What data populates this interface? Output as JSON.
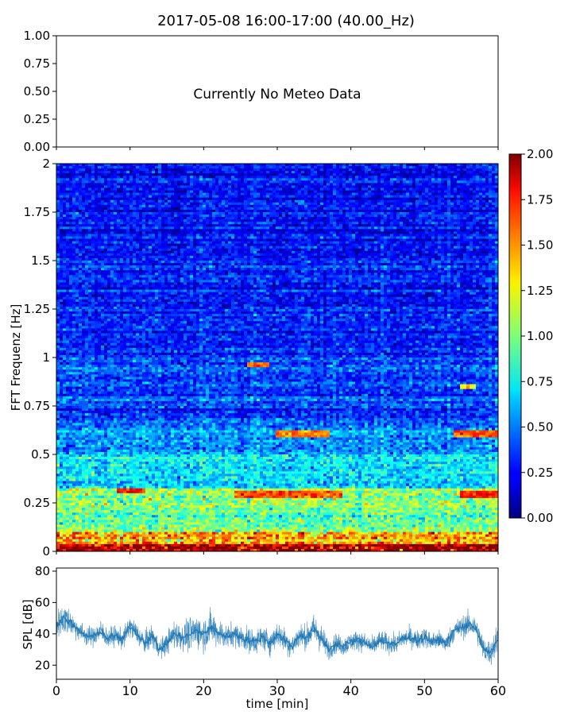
{
  "figure": {
    "title": "2017-05-08 16:00-17:00 (40.00_Hz)"
  },
  "chart_data": [
    {
      "type": "line",
      "panel": "meteo",
      "annotation": "Currently No Meteo Data",
      "ylim": [
        0,
        1
      ],
      "yticks": [
        "1.00",
        "0.75",
        "0.50",
        "0.25",
        "0.00"
      ],
      "series": []
    },
    {
      "type": "heatmap",
      "panel": "spectrogram",
      "ylabel": "FFT Frequenz [Hz]",
      "ylim": [
        0,
        2
      ],
      "yticks": [
        "2",
        "1.75",
        "1.5",
        "1.25",
        "1",
        "0.75",
        "0.5",
        "0.25",
        "0"
      ],
      "xlim": [
        0,
        60
      ],
      "colorbar": {
        "range": [
          0,
          2
        ],
        "ticks": [
          "2.00",
          "1.75",
          "1.50",
          "1.25",
          "1.00",
          "0.75",
          "0.50",
          "0.25",
          "0.00"
        ],
        "colormap": "jet"
      },
      "bands": [
        {
          "f": [
            0,
            0.04
          ],
          "level": 1.95
        },
        {
          "f": [
            0.04,
            0.1
          ],
          "level": 1.35
        },
        {
          "f": [
            0.1,
            0.25
          ],
          "level": 0.95
        },
        {
          "f": [
            0.25,
            0.33
          ],
          "level": 1.05
        },
        {
          "f": [
            0.33,
            0.5
          ],
          "level": 0.7
        },
        {
          "f": [
            0.5,
            0.65
          ],
          "level": 0.55
        },
        {
          "f": [
            0.65,
            1.0
          ],
          "level": 0.42
        },
        {
          "f": [
            1.0,
            1.5
          ],
          "level": 0.33
        },
        {
          "f": [
            1.5,
            2.0
          ],
          "level": 0.27
        }
      ],
      "hotspots": [
        {
          "t": [
            26,
            29
          ],
          "f": [
            0.95,
            0.97
          ],
          "level": 1.6
        },
        {
          "t": [
            30,
            37
          ],
          "f": [
            0.59,
            0.62
          ],
          "level": 1.5
        },
        {
          "t": [
            54,
            60
          ],
          "f": [
            0.59,
            0.62
          ],
          "level": 1.6
        },
        {
          "t": [
            55,
            57
          ],
          "f": [
            0.84,
            0.86
          ],
          "level": 1.3
        },
        {
          "t": [
            8,
            12
          ],
          "f": [
            0.3,
            0.32
          ],
          "level": 1.7
        },
        {
          "t": [
            24,
            39
          ],
          "f": [
            0.28,
            0.31
          ],
          "level": 1.6
        },
        {
          "t": [
            55,
            60
          ],
          "f": [
            0.28,
            0.31
          ],
          "level": 1.7
        }
      ]
    },
    {
      "type": "line",
      "panel": "spl",
      "ylabel": "SPL [dB]",
      "xlabel": "time [min]",
      "xlim": [
        0,
        60
      ],
      "ylim": [
        11,
        82
      ],
      "yticks": [
        20,
        40,
        60,
        80
      ],
      "xticks": [
        0,
        10,
        20,
        30,
        40,
        50,
        60
      ],
      "color": "#1f77b4",
      "series": [
        {
          "x": [
            0,
            1,
            2,
            3,
            4,
            5,
            6,
            7,
            8,
            9,
            10,
            11,
            12,
            13,
            14,
            15,
            16,
            17,
            18,
            19,
            20,
            21,
            22,
            23,
            24,
            25,
            26,
            27,
            28,
            29,
            30,
            31,
            32,
            33,
            34,
            35,
            36,
            37,
            38,
            39,
            40,
            41,
            42,
            43,
            44,
            45,
            46,
            47,
            48,
            49,
            50,
            51,
            52,
            53,
            54,
            55,
            56,
            57,
            58,
            59,
            60
          ],
          "y": [
            46,
            50,
            47,
            42,
            39,
            38,
            42,
            37,
            39,
            36,
            45,
            40,
            34,
            39,
            30,
            34,
            40,
            38,
            39,
            42,
            40,
            44,
            41,
            38,
            40,
            38,
            36,
            35,
            38,
            34,
            40,
            36,
            32,
            39,
            38,
            43,
            37,
            30,
            34,
            32,
            35,
            36,
            34,
            32,
            36,
            34,
            33,
            37,
            38,
            36,
            38,
            35,
            36,
            34,
            42,
            44,
            46,
            44,
            30,
            28,
            37
          ],
          "spread": [
            10,
            14,
            10,
            8,
            8,
            8,
            9,
            8,
            8,
            8,
            9,
            9,
            9,
            10,
            8,
            9,
            12,
            10,
            14,
            14,
            14,
            14,
            12,
            10,
            10,
            10,
            10,
            10,
            10,
            10,
            10,
            10,
            10,
            10,
            10,
            12,
            12,
            8,
            8,
            8,
            8,
            8,
            8,
            8,
            8,
            8,
            8,
            8,
            8,
            8,
            8,
            8,
            8,
            8,
            9,
            9,
            10,
            10,
            10,
            10,
            14
          ]
        }
      ]
    }
  ]
}
